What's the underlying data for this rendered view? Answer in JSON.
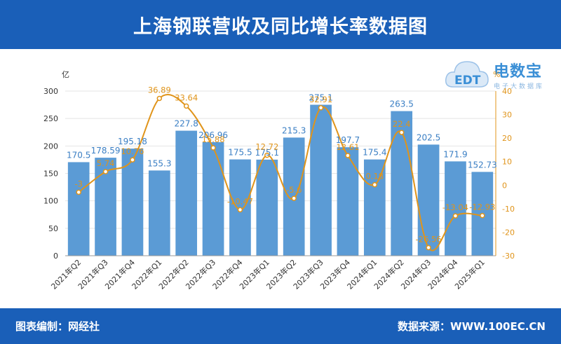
{
  "header": {
    "title": "上海钢联营收及同比增长率数据图"
  },
  "footer": {
    "left": "图表编制：网经社",
    "right": "数据来源：WWW.100EC.CN"
  },
  "logo": {
    "cn": "电数宝",
    "sub": "电子大数据库",
    "mark": "EDT"
  },
  "colors": {
    "bar": "#5b9bd5",
    "line": "#e0941a",
    "header": "#1a5fb8"
  },
  "chart_data": {
    "type": "bar",
    "categories": [
      "2021年Q2",
      "2021年Q3",
      "2021年Q4",
      "2022年Q1",
      "2022年Q2",
      "2022年Q3",
      "2022年Q4",
      "2023年Q1",
      "2023年Q2",
      "2023年Q3",
      "2023年Q4",
      "2024年Q1",
      "2024年Q2",
      "2024年Q3",
      "2024年Q4",
      "2025年Q1"
    ],
    "series": [
      {
        "name": "营收",
        "type": "bar",
        "axis": "left",
        "values": [
          170.5,
          178.59,
          195.18,
          155.3,
          227.8,
          206.96,
          175.5,
          175.1,
          215.3,
          275.1,
          197.7,
          175.4,
          263.5,
          202.5,
          171.9,
          152.73
        ]
      },
      {
        "name": "同比增长率",
        "type": "line",
        "axis": "right",
        "values": [
          -3,
          5.74,
          10.76,
          36.89,
          33.64,
          15.88,
          -10.47,
          12.72,
          -5.6,
          32.91,
          12.61,
          0.18,
          22.4,
          -26.56,
          -13.04,
          -12.93
        ]
      }
    ],
    "y_left": {
      "unit": "亿",
      "min": 0,
      "max": 300,
      "ticks": [
        0,
        50,
        100,
        150,
        200,
        250,
        300
      ]
    },
    "y_right": {
      "unit": "%",
      "min": -30,
      "max": 40,
      "ticks": [
        -30,
        -20,
        -10,
        0,
        10,
        20,
        30,
        40
      ]
    },
    "grid": true
  }
}
